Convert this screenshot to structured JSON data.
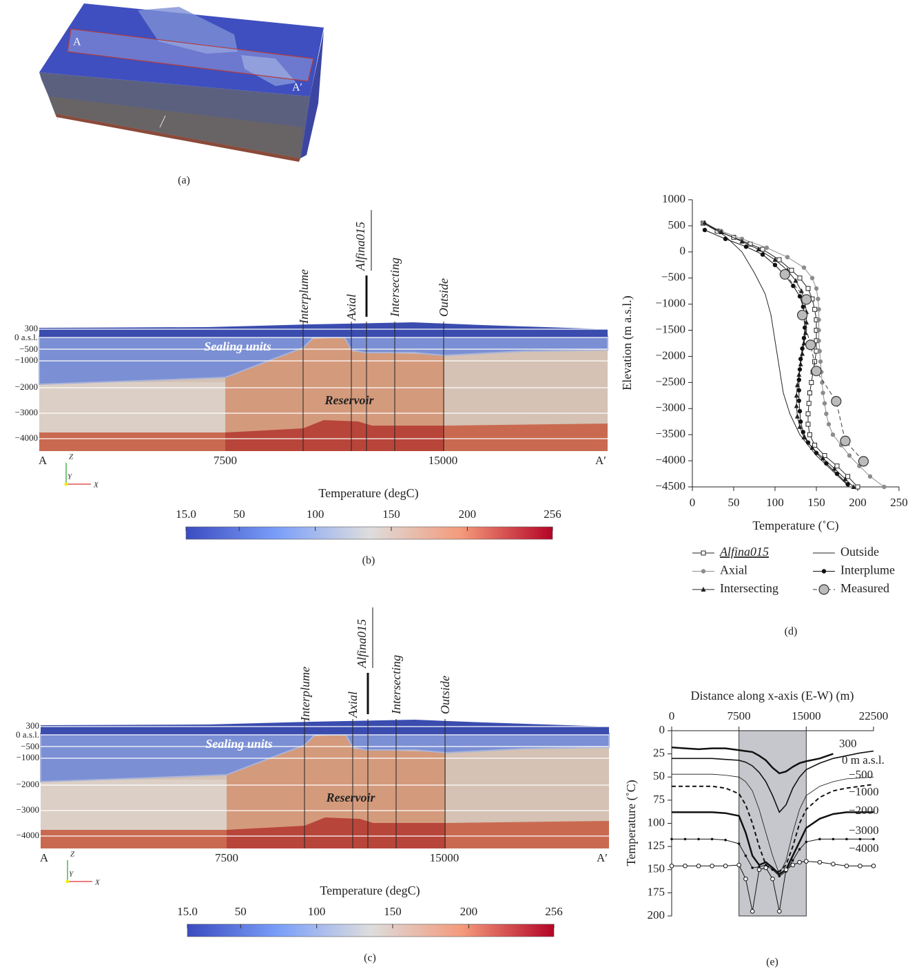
{
  "panel_a": {
    "caption": "(a)",
    "label_start": "A",
    "label_end": "A′"
  },
  "sections": [
    {
      "caption": "(b)",
      "depth_labels": [
        "300",
        "0 a.s.l.",
        "−500",
        "−1000",
        "−2000",
        "−3000",
        "−4000"
      ],
      "wells": [
        "Interplume",
        "Axial",
        "Alfina015",
        "Intersecting",
        "Outside"
      ],
      "units": [
        "Sealing units",
        "Reservoir"
      ],
      "x_labels": [
        "A",
        "7500",
        "15000",
        "A′"
      ],
      "axes": [
        "Z",
        "Y",
        "X"
      ],
      "colorbar": {
        "title": "Temperature (degC)",
        "range": [
          15,
          256
        ],
        "ticks": [
          {
            "value": 15,
            "label": "15.0"
          },
          50,
          100,
          150,
          200,
          256
        ]
      }
    },
    {
      "caption": "(c)",
      "depth_labels": [
        "300",
        "0 a.s.l.",
        "−500",
        "−1000",
        "−2000",
        "−3000",
        "−4000"
      ],
      "wells": [
        "Interplume",
        "Axial",
        "Alfina015",
        "Intersecting",
        "Outside"
      ],
      "units": [
        "Sealing units",
        "Reservoir"
      ],
      "x_labels": [
        "A",
        "7500",
        "15000",
        "A′"
      ],
      "axes": [
        "Z",
        "Y",
        "X"
      ],
      "colorbar": {
        "title": "Temperature (degC)",
        "range": [
          15,
          256
        ],
        "ticks": [
          {
            "value": 15,
            "label": "15.0"
          },
          50,
          100,
          150,
          200,
          256
        ]
      }
    }
  ],
  "chart_data": [
    {
      "type": "line",
      "caption": "(d)",
      "x_label": "Temperature (˚C)",
      "y_label": "Elevation (m a.s.l.)",
      "xlim": [
        0,
        250
      ],
      "xticks": [
        0,
        50,
        100,
        150,
        200,
        250
      ],
      "ylim": [
        -4500,
        1000
      ],
      "yticks": [
        {
          "value": -4500,
          "label": "−4500"
        },
        {
          "value": -4000,
          "label": "−4000"
        },
        {
          "value": -3500,
          "label": "−3500"
        },
        {
          "value": -3000,
          "label": "−3000"
        },
        {
          "value": -2500,
          "label": "−2500"
        },
        {
          "value": -2000,
          "label": "−2000"
        },
        {
          "value": -1500,
          "label": "−1500"
        },
        {
          "value": -1000,
          "label": "−1000"
        },
        {
          "value": -500,
          "label": "−500"
        },
        0,
        500,
        1000
      ],
      "series": [
        {
          "name": "Alfina015",
          "color": "#222222",
          "marker": "square-open",
          "line_width": 1,
          "x": [
            13,
            30,
            50,
            70,
            85,
            105,
            120,
            130,
            140,
            145,
            148,
            150,
            150,
            150,
            150,
            148,
            146,
            144,
            142,
            141,
            140,
            140,
            142,
            148,
            160,
            175,
            188,
            200
          ],
          "values": [
            550,
            400,
            280,
            150,
            50,
            -150,
            -350,
            -500,
            -700,
            -900,
            -1100,
            -1300,
            -1500,
            -1700,
            -1900,
            -2100,
            -2300,
            -2500,
            -2700,
            -2900,
            -3100,
            -3300,
            -3500,
            -3700,
            -3900,
            -4100,
            -4300,
            -4500
          ]
        },
        {
          "name": "Axial",
          "color": "#8c8c8c",
          "marker": "circle",
          "line_width": 1,
          "x": [
            13,
            35,
            60,
            90,
            115,
            135,
            145,
            150,
            152,
            153,
            153,
            153,
            153,
            154,
            155,
            156,
            157,
            158,
            160,
            162,
            165,
            170,
            180,
            190,
            202,
            215,
            232
          ],
          "values": [
            550,
            400,
            250,
            80,
            -100,
            -300,
            -500,
            -700,
            -900,
            -1100,
            -1300,
            -1500,
            -1700,
            -1900,
            -2100,
            -2300,
            -2500,
            -2700,
            -2900,
            -3100,
            -3300,
            -3500,
            -3700,
            -3900,
            -4100,
            -4300,
            -4500
          ]
        },
        {
          "name": "Intersecting",
          "color": "#222222",
          "marker": "triangle",
          "line_width": 1,
          "x": [
            15,
            35,
            60,
            80,
            100,
            115,
            125,
            132,
            136,
            138,
            138,
            137,
            135,
            133,
            131,
            129,
            127,
            126,
            126,
            127,
            130,
            135,
            145,
            158,
            172,
            185,
            195
          ],
          "values": [
            560,
            380,
            200,
            50,
            -150,
            -350,
            -550,
            -750,
            -950,
            -1150,
            -1350,
            -1550,
            -1750,
            -1950,
            -2150,
            -2350,
            -2550,
            -2750,
            -2950,
            -3150,
            -3350,
            -3550,
            -3750,
            -3950,
            -4150,
            -4350,
            -4500
          ]
        },
        {
          "name": "Outside",
          "color": "#222222",
          "marker": "none",
          "line_width": 1,
          "x": [
            15,
            40,
            60,
            75,
            88,
            95,
            100,
            105,
            110,
            118,
            130,
            150,
            170,
            190
          ],
          "values": [
            560,
            300,
            0,
            -400,
            -800,
            -1200,
            -1700,
            -2200,
            -2700,
            -3100,
            -3500,
            -3900,
            -4200,
            -4500
          ]
        },
        {
          "name": "Interplume",
          "color": "#111111",
          "marker": "circle",
          "line_width": 1,
          "x": [
            15,
            40,
            65,
            85,
            100,
            112,
            122,
            130,
            134,
            136,
            136,
            135,
            133,
            131,
            130,
            129,
            129,
            129,
            130,
            131,
            134,
            140,
            150,
            162,
            175,
            188
          ],
          "values": [
            420,
            250,
            100,
            -50,
            -250,
            -450,
            -650,
            -850,
            -1050,
            -1250,
            -1450,
            -1650,
            -1850,
            -2050,
            -2250,
            -2450,
            -2650,
            -2850,
            -3050,
            -3250,
            -3450,
            -3650,
            -3850,
            -4050,
            -4250,
            -4450
          ]
        },
        {
          "name": "Measured",
          "color": "#bbbbbb",
          "marker": "big-circle",
          "line_width": 1,
          "dash": true,
          "x": [
            112,
            138,
            133,
            143,
            150,
            174,
            185,
            207
          ],
          "values": [
            -430,
            -910,
            -1210,
            -1780,
            -2280,
            -2860,
            -3620,
            -4010
          ]
        }
      ]
    },
    {
      "type": "line",
      "caption": "(e)",
      "x_label": "Distance along x-axis (E-W) (m)",
      "y_label": "Temperature (˚C)",
      "xlim": [
        0,
        22500
      ],
      "xticks": [
        0,
        7500,
        15000,
        22500
      ],
      "ylim": [
        0,
        200
      ],
      "y_reversed": true,
      "yticks": [
        0,
        25,
        50,
        75,
        100,
        125,
        150,
        175,
        200
      ],
      "shaded_x": [
        7500,
        15000
      ],
      "x": [
        0,
        1500,
        3000,
        4500,
        6000,
        7500,
        8250,
        9000,
        9750,
        10500,
        11250,
        12000,
        12750,
        13500,
        14250,
        15000,
        16500,
        18000,
        19500,
        21000,
        22500
      ],
      "series": [
        {
          "name": "300",
          "color": "#111111",
          "line_width": 2.5,
          "marker": "none",
          "values": [
            18,
            19,
            20,
            19,
            19,
            21,
            22,
            23,
            27,
            32,
            40,
            46,
            44,
            39,
            35,
            33,
            30,
            25,
            null,
            null,
            null
          ]
        },
        {
          "name": "0 m a.s.l.",
          "color": "#111111",
          "line_width": 1.6,
          "marker": "none",
          "values": [
            30,
            30,
            30,
            30,
            31,
            32,
            34,
            38,
            45,
            55,
            70,
            88,
            80,
            62,
            50,
            42,
            35,
            30,
            27,
            24,
            22
          ]
        },
        {
          "name": "−500",
          "color": "#111111",
          "line_width": 0.8,
          "marker": "none",
          "values": [
            47,
            47,
            47,
            47,
            48,
            50,
            55,
            65,
            85,
            110,
            135,
            155,
            140,
            110,
            85,
            70,
            60,
            55,
            52,
            51,
            50
          ]
        },
        {
          "name": "−1000",
          "color": "#111111",
          "line_width": 2,
          "marker": "none",
          "dash": true,
          "values": [
            60,
            60,
            60,
            60,
            62,
            68,
            80,
            100,
            125,
            145,
            150,
            152,
            145,
            125,
            100,
            85,
            72,
            65,
            62,
            60,
            58
          ]
        },
        {
          "name": "−2000",
          "color": "#111111",
          "line_width": 2.5,
          "marker": "none",
          "values": [
            88,
            88,
            88,
            88,
            89,
            92,
            110,
            135,
            145,
            142,
            148,
            155,
            150,
            135,
            120,
            105,
            95,
            90,
            88,
            88,
            88
          ]
        },
        {
          "name": "−3000",
          "color": "#111111",
          "line_width": 1,
          "marker": "dot",
          "values": [
            117,
            117,
            117,
            117,
            118,
            122,
            135,
            148,
            147,
            145,
            150,
            157,
            152,
            140,
            128,
            120,
            117,
            117,
            117,
            117,
            117
          ]
        },
        {
          "name": "−4000",
          "color": "#111111",
          "line_width": 1,
          "marker": "circle-open",
          "values": [
            146,
            146,
            146,
            146,
            146,
            145,
            160,
            195,
            150,
            148,
            160,
            195,
            150,
            145,
            142,
            141,
            142,
            144,
            146,
            146,
            146
          ]
        }
      ]
    }
  ]
}
